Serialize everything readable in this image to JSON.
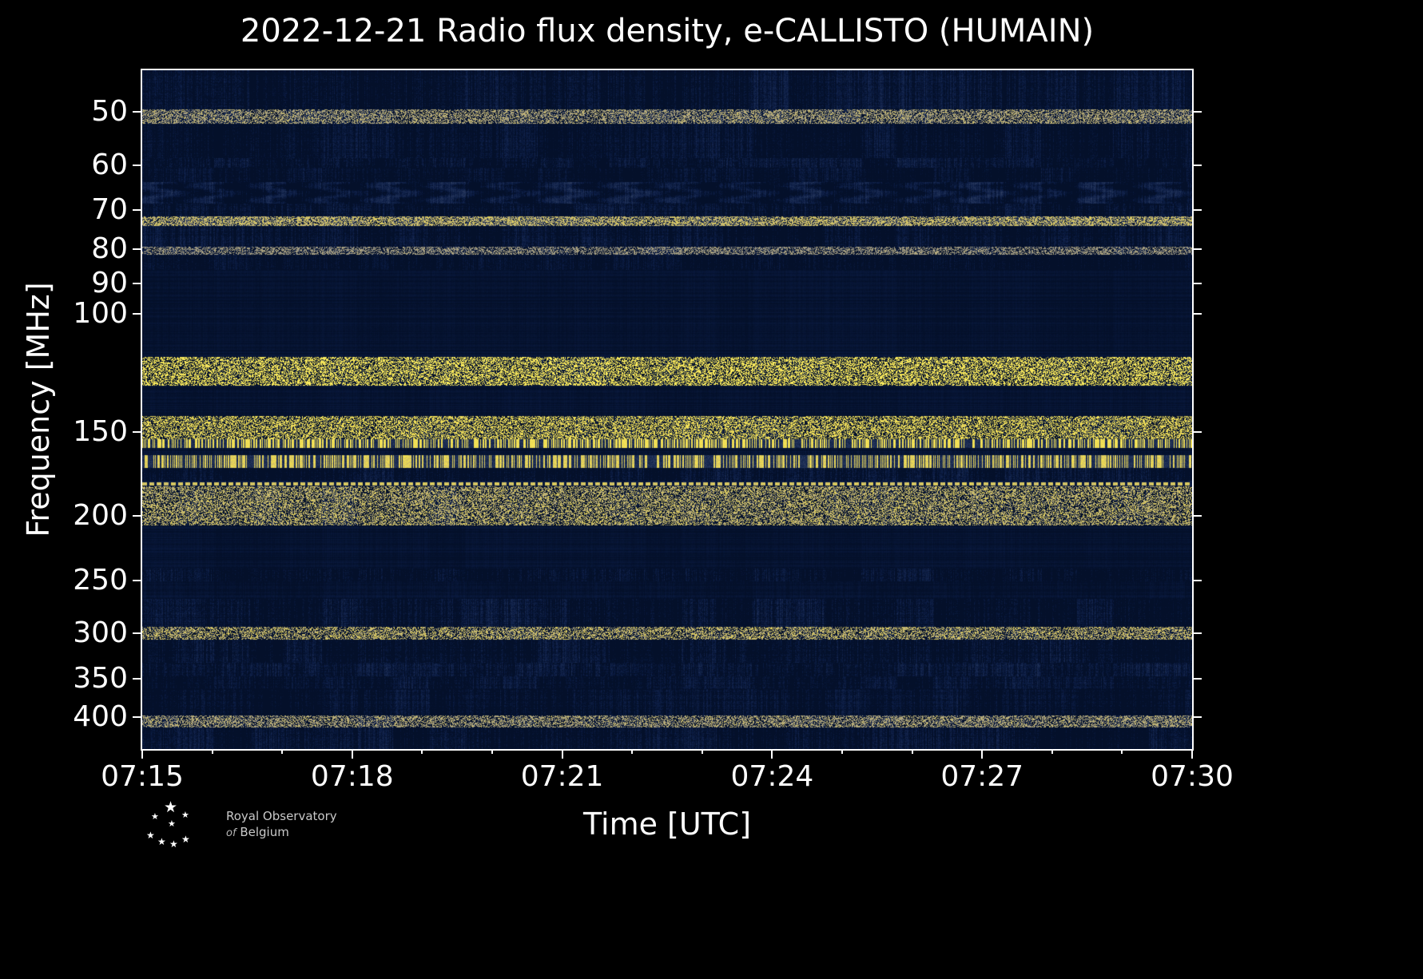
{
  "title": "2022-12-21 Radio flux density, e-CALLISTO (HUMAIN)",
  "axes": {
    "x_label": "Time [UTC]",
    "y_label": "Frequency [MHz]",
    "x_ticks": [
      "07:15",
      "07:18",
      "07:21",
      "07:24",
      "07:27",
      "07:30"
    ],
    "y_ticks": [
      50,
      60,
      70,
      80,
      90,
      100,
      150,
      200,
      250,
      300,
      350,
      400
    ]
  },
  "footer": {
    "org_line1": "Royal Observatory",
    "org_italic": "of",
    "org_line2": "Belgium",
    "star_glyph": "★"
  },
  "chart_data": {
    "type": "heatmap",
    "title": "2022-12-21 Radio flux density, e-CALLISTO (HUMAIN)",
    "xlabel": "Time [UTC]",
    "ylabel": "Frequency [MHz]",
    "date": "2022-12-21",
    "instrument": "e-CALLISTO (HUMAIN)",
    "x_range_utc": [
      "07:15",
      "07:30"
    ],
    "x_tick_labels": [
      "07:15",
      "07:18",
      "07:21",
      "07:24",
      "07:27",
      "07:30"
    ],
    "y_scale": "log",
    "y_axis_inverted": true,
    "freq_range_mhz": [
      43.3,
      446
    ],
    "y_tick_values_mhz": [
      50,
      60,
      70,
      80,
      90,
      100,
      150,
      200,
      250,
      300,
      350,
      400
    ],
    "legend": "none",
    "grid": false,
    "observations": "Dynamic radio spectrum dominated by broadband background noise and persistent horizontal terrestrial RFI lines; strong saturated interference lines near 156 MHz and 166 MHz, an intermittent dashed line near 179 MHz, speckled interference near 73 and 122 MHz; no solar radio burst visible.",
    "rfi_lines_mhz": [
      50.5,
      73,
      122,
      150,
      156,
      166,
      179,
      245,
      300,
      408
    ],
    "quiet_bands_mhz": [
      [
        86,
        116
      ],
      [
        128,
        142
      ],
      [
        207,
        240
      ],
      [
        251,
        266
      ]
    ],
    "colormap_stops": [
      [
        0.0,
        "#04102a"
      ],
      [
        0.12,
        "#0b1c44"
      ],
      [
        0.3,
        "#23345a"
      ],
      [
        0.45,
        "#47536f"
      ],
      [
        0.6,
        "#7b7e85"
      ],
      [
        0.75,
        "#b3a87f"
      ],
      [
        0.88,
        "#ecd951"
      ],
      [
        1.0,
        "#fff263"
      ]
    ],
    "bands": [
      {
        "f0": 43.3,
        "f1": 49.5,
        "style": "noise",
        "level": 0.3,
        "amp": 0.28
      },
      {
        "f0": 49.5,
        "f1": 52.0,
        "style": "speckle",
        "level": 0.36,
        "amp": 0.3,
        "sp": 0.02,
        "spLevel": 0.75
      },
      {
        "f0": 52.0,
        "f1": 58.5,
        "style": "noise",
        "level": 0.27,
        "amp": 0.26
      },
      {
        "f0": 58.5,
        "f1": 60.5,
        "style": "noise",
        "level": 0.33,
        "amp": 0.3
      },
      {
        "f0": 60.5,
        "f1": 63.5,
        "style": "noise",
        "level": 0.24,
        "amp": 0.24
      },
      {
        "f0": 63.5,
        "f1": 68.5,
        "style": "wavy",
        "level": 0.3,
        "amp": 0.26
      },
      {
        "f0": 68.5,
        "f1": 71.5,
        "style": "noise",
        "level": 0.3,
        "amp": 0.28
      },
      {
        "f0": 71.5,
        "f1": 74.0,
        "style": "speckle",
        "level": 0.45,
        "amp": 0.32,
        "sp": 0.12,
        "spLevel": 0.8
      },
      {
        "f0": 74.0,
        "f1": 79.5,
        "style": "noise",
        "level": 0.28,
        "amp": 0.27
      },
      {
        "f0": 79.5,
        "f1": 81.5,
        "style": "speckle",
        "level": 0.33,
        "amp": 0.3,
        "sp": 0.02,
        "spLevel": 0.7
      },
      {
        "f0": 81.5,
        "f1": 86.0,
        "style": "noise",
        "level": 0.22,
        "amp": 0.22
      },
      {
        "f0": 86.0,
        "f1": 116.0,
        "style": "quiet",
        "level": 0.11,
        "amp": 0.05
      },
      {
        "f0": 116.0,
        "f1": 128.0,
        "style": "speckle",
        "level": 0.3,
        "amp": 0.3,
        "sp": 0.035,
        "spLevel": 0.95
      },
      {
        "f0": 128.0,
        "f1": 142.0,
        "style": "quiet",
        "level": 0.11,
        "amp": 0.05
      },
      {
        "f0": 142.0,
        "f1": 154.0,
        "style": "speckle",
        "level": 0.33,
        "amp": 0.32,
        "sp": 0.02,
        "spLevel": 0.9
      },
      {
        "f0": 154.0,
        "f1": 158.5,
        "style": "yellow",
        "level": 0.95,
        "amp": 0.08,
        "gap": 0.012
      },
      {
        "f0": 158.5,
        "f1": 162.5,
        "style": "quiet",
        "level": 0.14,
        "amp": 0.08
      },
      {
        "f0": 162.5,
        "f1": 170.0,
        "style": "yellow",
        "level": 0.92,
        "amp": 0.12,
        "gap": 0.02
      },
      {
        "f0": 170.0,
        "f1": 177.5,
        "style": "noise",
        "level": 0.3,
        "amp": 0.3
      },
      {
        "f0": 177.5,
        "f1": 181.0,
        "style": "dotted",
        "level": 0.88,
        "amp": 0.1
      },
      {
        "f0": 181.0,
        "f1": 207.0,
        "style": "speckle",
        "level": 0.3,
        "amp": 0.3,
        "sp": 0.01,
        "spLevel": 0.8
      },
      {
        "f0": 207.0,
        "f1": 240.0,
        "style": "quiet",
        "level": 0.11,
        "amp": 0.05
      },
      {
        "f0": 240.0,
        "f1": 251.0,
        "style": "noise",
        "level": 0.28,
        "amp": 0.28
      },
      {
        "f0": 251.0,
        "f1": 266.0,
        "style": "quiet",
        "level": 0.13,
        "amp": 0.07
      },
      {
        "f0": 266.0,
        "f1": 293.0,
        "style": "noise",
        "level": 0.3,
        "amp": 0.3
      },
      {
        "f0": 293.0,
        "f1": 306.0,
        "style": "speckle",
        "level": 0.35,
        "amp": 0.33,
        "sp": 0.02,
        "spLevel": 0.8
      },
      {
        "f0": 306.0,
        "f1": 332.0,
        "style": "noise",
        "level": 0.3,
        "amp": 0.3
      },
      {
        "f0": 332.0,
        "f1": 347.0,
        "style": "noise",
        "level": 0.33,
        "amp": 0.3
      },
      {
        "f0": 347.0,
        "f1": 363.0,
        "style": "noise",
        "level": 0.27,
        "amp": 0.26
      },
      {
        "f0": 363.0,
        "f1": 398.0,
        "style": "noise",
        "level": 0.25,
        "amp": 0.25
      },
      {
        "f0": 398.0,
        "f1": 414.0,
        "style": "speckle",
        "level": 0.33,
        "amp": 0.3,
        "sp": 0.02,
        "spLevel": 0.75
      },
      {
        "f0": 414.0,
        "f1": 446.0,
        "style": "noise",
        "level": 0.28,
        "amp": 0.28
      }
    ]
  }
}
